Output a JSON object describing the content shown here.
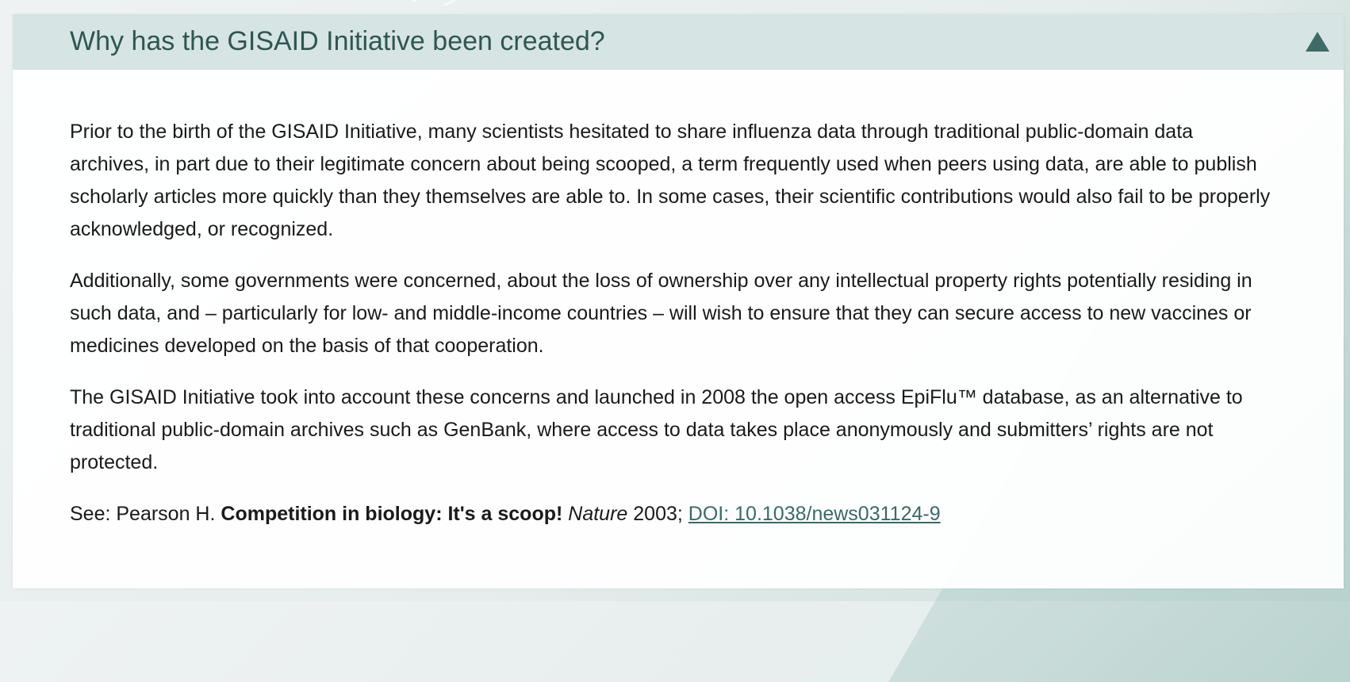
{
  "accordion": {
    "title": "Why has the GISAID Initiative been created?",
    "toggle_icon": "triangle-up-icon",
    "paragraphs": [
      "Prior to the birth of the GISAID Initiative, many scientists hesitated to share influenza data through traditional public-domain data archives, in part due to their legitimate concern about being scooped, a term frequently used when peers using data, are able to publish scholarly articles more quickly than they themselves are able to. In some cases, their scientific contributions would also fail to be properly acknowledged, or recognized.",
      "Additionally, some governments were concerned, about the loss of ownership over any intellectual property rights potentially residing in such data, and – particularly for low- and middle-income countries – will wish to ensure that they can secure access to new vaccines or medicines developed on the basis of that cooperation.",
      "The GISAID Initiative took into account these concerns and launched in 2008 the open access EpiFlu™ database, as an alternative to traditional public-domain archives such as GenBank, where access to data takes place anonymously and submitters’ rights are not protected."
    ],
    "reference": {
      "prefix": "See: Pearson H. ",
      "title": "Competition in biology: It's a scoop!",
      "journal": "Nature",
      "year": "2003;",
      "doi_label": "DOI: 10.1038/news031124-9"
    }
  },
  "colors": {
    "header_bg": "#d6e4e3",
    "title": "#2f5652",
    "icon": "#3f6b66",
    "link": "#3a6a66"
  }
}
